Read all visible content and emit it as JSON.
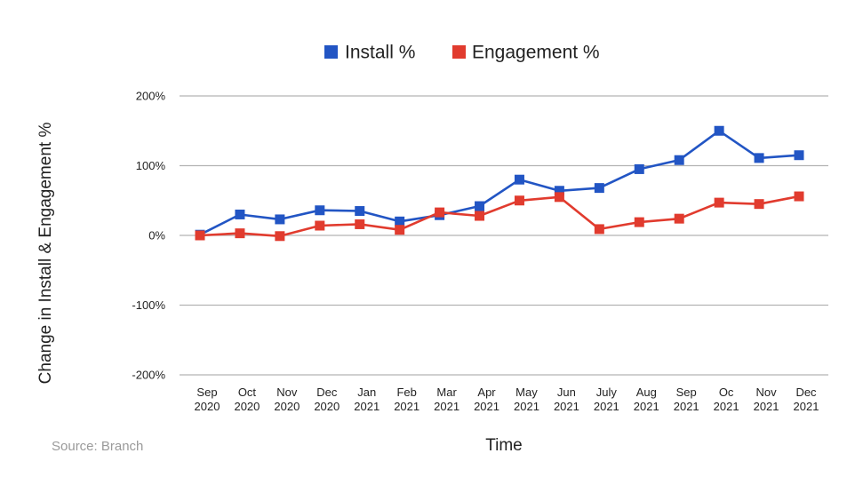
{
  "chart_data": {
    "type": "line",
    "xlabel": "Time",
    "ylabel": "Change in Install & Engagement %",
    "ylim": [
      -200,
      200
    ],
    "yticks": [
      200,
      100,
      0,
      -100,
      -200
    ],
    "ytick_labels": [
      "200%",
      "100%",
      "0%",
      "-100%",
      "-200%"
    ],
    "grid": true,
    "legend_position": "top-center",
    "categories": [
      [
        "Sep",
        "2020"
      ],
      [
        "Oct",
        "2020"
      ],
      [
        "Nov",
        "2020"
      ],
      [
        "Dec",
        "2020"
      ],
      [
        "Jan",
        "2021"
      ],
      [
        "Feb",
        "2021"
      ],
      [
        "Mar",
        "2021"
      ],
      [
        "Apr",
        "2021"
      ],
      [
        "May",
        "2021"
      ],
      [
        "Jun",
        "2021"
      ],
      [
        "July",
        "2021"
      ],
      [
        "Aug",
        "2021"
      ],
      [
        "Sep",
        "2021"
      ],
      [
        "Oc",
        "2021"
      ],
      [
        "Nov",
        "2021"
      ],
      [
        "Dec",
        "2021"
      ]
    ],
    "series": [
      {
        "name": "Install %",
        "color": "#2255c4",
        "values": [
          1,
          30,
          23,
          36,
          35,
          20,
          29,
          42,
          80,
          64,
          68,
          95,
          108,
          150,
          111,
          115
        ]
      },
      {
        "name": "Engagement %",
        "color": "#e13b2e",
        "values": [
          0,
          3,
          -1,
          14,
          16,
          8,
          33,
          28,
          50,
          55,
          9,
          19,
          24,
          47,
          45,
          56
        ]
      }
    ],
    "source": "Source: Branch"
  }
}
